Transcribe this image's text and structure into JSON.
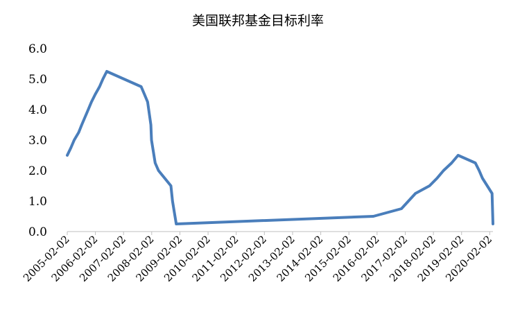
{
  "chart_data": {
    "type": "line",
    "title": "美国联邦基金目标利率",
    "xlabel": "",
    "ylabel": "",
    "ylim": [
      0,
      6
    ],
    "y_ticks": [
      "0.0",
      "1.0",
      "2.0",
      "3.0",
      "4.0",
      "5.0",
      "6.0"
    ],
    "x_ticks": [
      "2005-02-02",
      "2006-02-02",
      "2007-02-02",
      "2008-02-02",
      "2009-02-02",
      "2010-02-02",
      "2011-02-02",
      "2012-02-02",
      "2013-02-02",
      "2014-02-02",
      "2015-02-02",
      "2016-02-02",
      "2017-02-02",
      "2018-02-02",
      "2019-02-02",
      "2020-02-02"
    ],
    "grid": false,
    "legend": "none",
    "series_color": "#4a7ebb",
    "series": [
      {
        "x": [
          "2005-02-02",
          "2005-03-22",
          "2005-05-03",
          "2005-06-30",
          "2005-08-09",
          "2005-09-20",
          "2005-11-01",
          "2005-12-13",
          "2006-01-31",
          "2006-03-28",
          "2006-05-10",
          "2006-06-29",
          "2007-09-18",
          "2007-10-31",
          "2007-12-11",
          "2008-01-22",
          "2008-01-30",
          "2008-03-18",
          "2008-04-30",
          "2008-10-08",
          "2008-10-29",
          "2008-12-16",
          "2015-12-16",
          "2016-12-14",
          "2017-03-15",
          "2017-06-14",
          "2017-12-13",
          "2018-03-21",
          "2018-06-13",
          "2018-09-26",
          "2018-12-19",
          "2019-07-31",
          "2019-09-18",
          "2019-10-30",
          "2020-03-03",
          "2020-03-15"
        ],
        "values": [
          2.5,
          2.75,
          3.0,
          3.25,
          3.5,
          3.75,
          4.0,
          4.25,
          4.5,
          4.75,
          5.0,
          5.25,
          4.75,
          4.5,
          4.25,
          3.5,
          3.0,
          2.25,
          2.0,
          1.5,
          1.0,
          0.25,
          0.5,
          0.75,
          1.0,
          1.25,
          1.5,
          1.75,
          2.0,
          2.25,
          2.5,
          2.25,
          2.0,
          1.75,
          1.25,
          0.25
        ]
      }
    ]
  }
}
